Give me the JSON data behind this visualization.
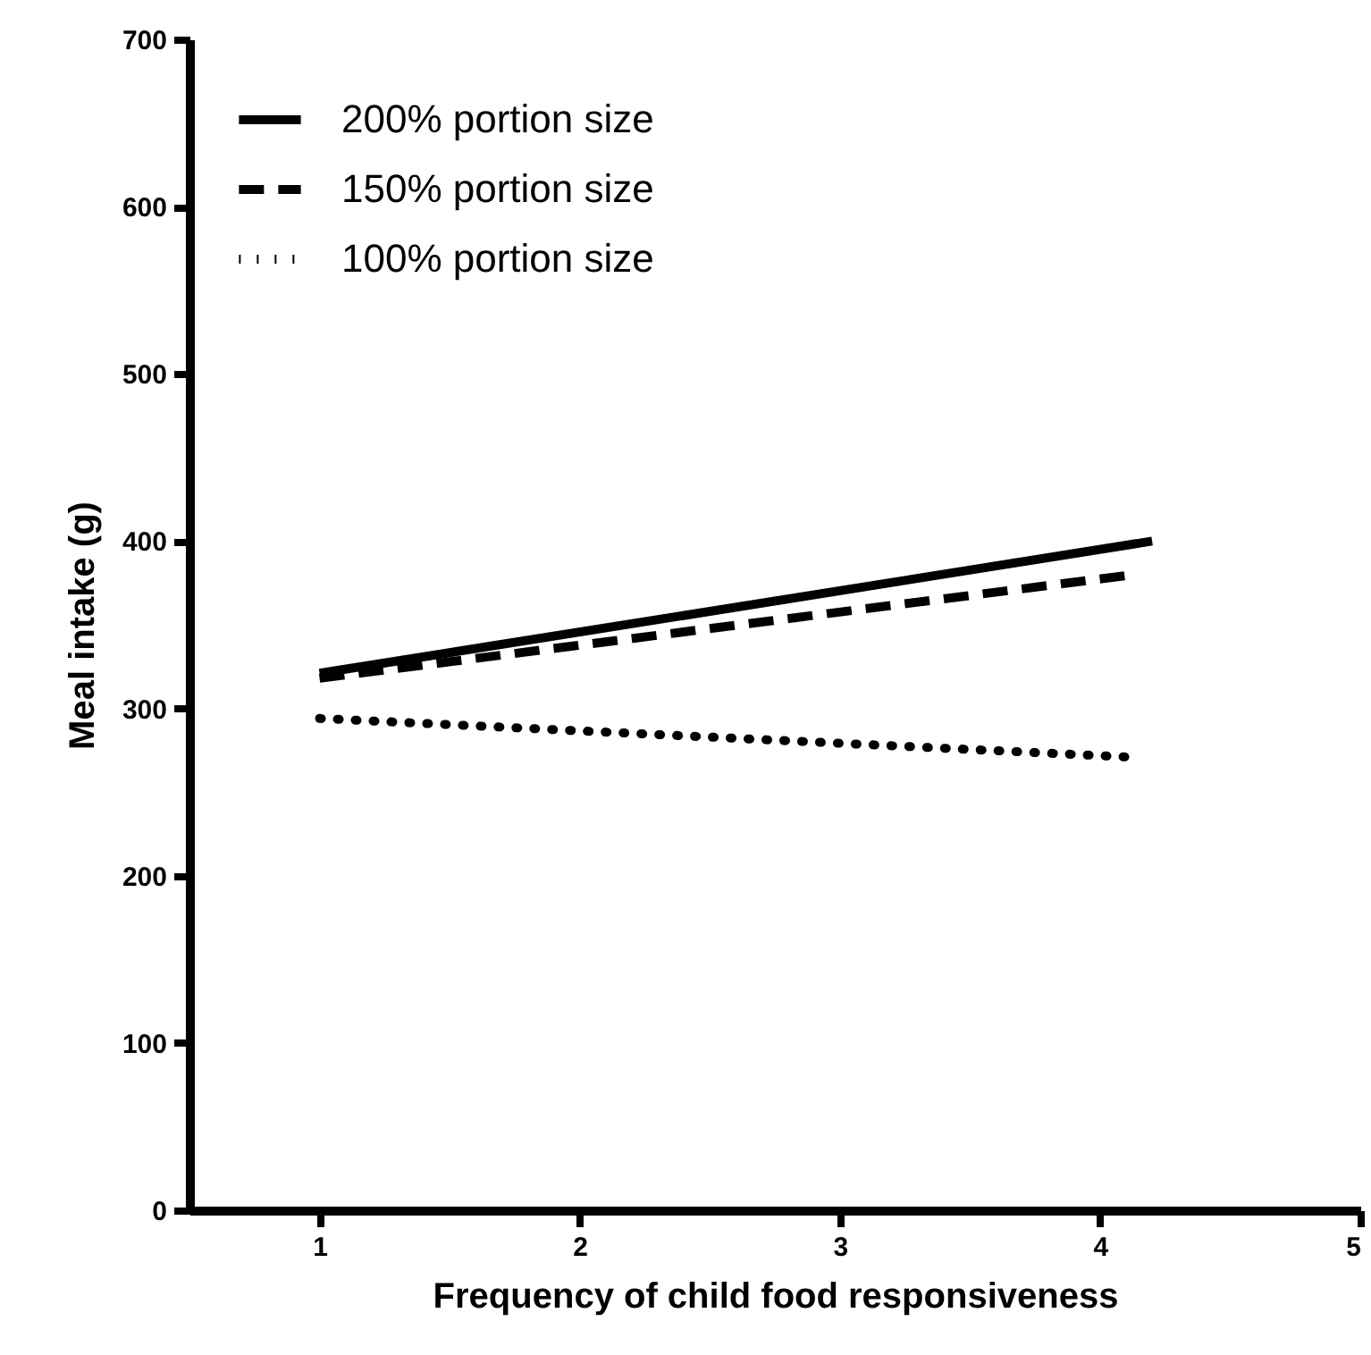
{
  "chart_data": {
    "type": "line",
    "xlabel": "Frequency of child food responsiveness",
    "ylabel": "Meal intake (g)",
    "xlim": [
      0.5,
      5
    ],
    "xticks": [
      1,
      2,
      3,
      4,
      5
    ],
    "ylim": [
      0,
      700
    ],
    "yticks": [
      0,
      100,
      200,
      300,
      400,
      500,
      600,
      700
    ],
    "grid": false,
    "legend": "top left",
    "marker": "none",
    "series": [
      {
        "name": "200% portion size",
        "color": "#000000",
        "line_style": "solid",
        "x": [
          1,
          4.2
        ],
        "values": [
          321,
          400
        ]
      },
      {
        "name": "150% portion size",
        "color": "#000000",
        "line_style": "dashed",
        "x": [
          1,
          4.13
        ],
        "values": [
          318,
          380
        ]
      },
      {
        "name": "100% portion size",
        "color": "#000000",
        "line_style": "dotted",
        "x": [
          1,
          4.1
        ],
        "values": [
          294,
          271
        ]
      }
    ]
  }
}
